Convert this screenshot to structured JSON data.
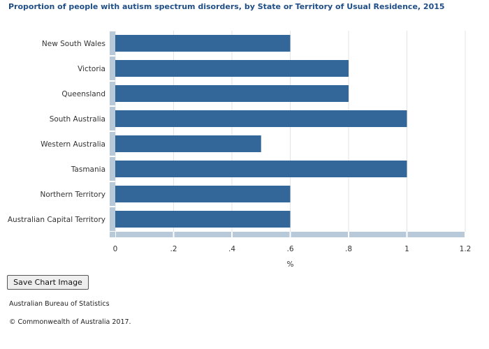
{
  "chart_data": {
    "type": "bar",
    "orientation": "horizontal",
    "title": "Proportion of people with autism spectrum disorders, by State or Territory of Usual Residence, 2015",
    "xlabel": "%",
    "ylabel": "",
    "categories": [
      "New South Wales",
      "Victoria",
      "Queensland",
      "South Australia",
      "Western Australia",
      "Tasmania",
      "Northern Territory",
      "Australian Capital Territory"
    ],
    "values": [
      0.6,
      0.8,
      0.8,
      1.0,
      0.5,
      1.0,
      0.6,
      0.6
    ],
    "xlim": [
      0,
      1.2
    ],
    "xticks": [
      0,
      0.2,
      0.4,
      0.6,
      0.8,
      1.0,
      1.2
    ],
    "xtick_labels": [
      "0",
      ".2",
      ".4",
      ".6",
      ".8",
      "1",
      "1.2"
    ],
    "grid": true,
    "legend": "none",
    "bar_color": "#336699"
  },
  "controls": {
    "save_label": "Save Chart Image"
  },
  "footer": {
    "source": "Australian Bureau of Statistics",
    "copyright": "© Commonwealth of Australia 2017."
  }
}
